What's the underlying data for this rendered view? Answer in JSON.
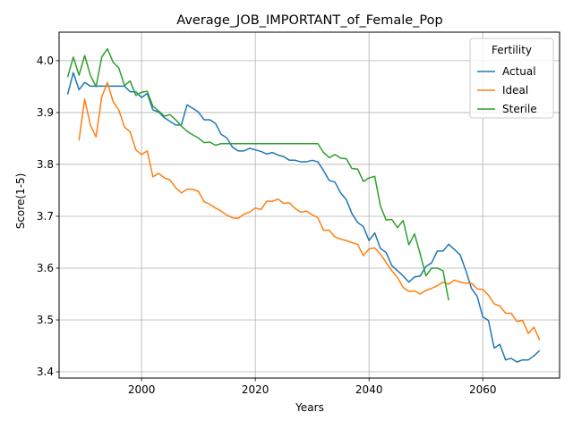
{
  "chart_data": {
    "type": "line",
    "title": "Average_JOB_IMPORTANT_of_Female_Pop",
    "xlabel": "Years",
    "ylabel": "Score(1-5)",
    "xlim": [
      1985.5,
      2073.5
    ],
    "ylim": [
      3.388,
      4.055
    ],
    "xticks": [
      2000,
      2020,
      2040,
      2060
    ],
    "yticks": [
      3.4,
      3.5,
      3.6,
      3.7,
      3.8,
      3.9,
      4.0
    ],
    "grid": true,
    "legend": {
      "title": "Fertility",
      "placement": "top-right"
    },
    "series": [
      {
        "name": "Actual",
        "color": "#1f77b4",
        "points": [
          [
            1987,
            3.935
          ],
          [
            1988,
            3.977
          ],
          [
            1989,
            3.944
          ],
          [
            1990,
            3.958
          ],
          [
            1991,
            3.951
          ],
          [
            1992,
            3.951
          ],
          [
            1993,
            3.951
          ],
          [
            1994,
            3.951
          ],
          [
            1995,
            3.951
          ],
          [
            1996,
            3.951
          ],
          [
            1997,
            3.951
          ],
          [
            1998,
            3.94
          ],
          [
            1999,
            3.94
          ],
          [
            2000,
            3.929
          ],
          [
            2001,
            3.937
          ],
          [
            2002,
            3.905
          ],
          [
            2003,
            3.901
          ],
          [
            2004,
            3.89
          ],
          [
            2005,
            3.883
          ],
          [
            2006,
            3.876
          ],
          [
            2007,
            3.876
          ],
          [
            2008,
            3.915
          ],
          [
            2009,
            3.908
          ],
          [
            2010,
            3.901
          ],
          [
            2011,
            3.886
          ],
          [
            2012,
            3.886
          ],
          [
            2013,
            3.879
          ],
          [
            2014,
            3.858
          ],
          [
            2015,
            3.851
          ],
          [
            2016,
            3.833
          ],
          [
            2017,
            3.826
          ],
          [
            2018,
            3.826
          ],
          [
            2019,
            3.831
          ],
          [
            2020,
            3.828
          ],
          [
            2021,
            3.825
          ],
          [
            2022,
            3.82
          ],
          [
            2023,
            3.823
          ],
          [
            2024,
            3.818
          ],
          [
            2025,
            3.815
          ],
          [
            2026,
            3.808
          ],
          [
            2027,
            3.808
          ],
          [
            2028,
            3.805
          ],
          [
            2029,
            3.805
          ],
          [
            2030,
            3.808
          ],
          [
            2031,
            3.805
          ],
          [
            2032,
            3.788
          ],
          [
            2033,
            3.769
          ],
          [
            2034,
            3.766
          ],
          [
            2035,
            3.745
          ],
          [
            2036,
            3.732
          ],
          [
            2037,
            3.705
          ],
          [
            2038,
            3.688
          ],
          [
            2039,
            3.68
          ],
          [
            2040,
            3.653
          ],
          [
            2041,
            3.668
          ],
          [
            2042,
            3.638
          ],
          [
            2043,
            3.63
          ],
          [
            2044,
            3.605
          ],
          [
            2045,
            3.595
          ],
          [
            2046,
            3.585
          ],
          [
            2047,
            3.573
          ],
          [
            2048,
            3.583
          ],
          [
            2049,
            3.585
          ],
          [
            2050,
            3.603
          ],
          [
            2051,
            3.61
          ],
          [
            2052,
            3.633
          ],
          [
            2053,
            3.633
          ],
          [
            2054,
            3.646
          ],
          [
            2055,
            3.636
          ],
          [
            2056,
            3.626
          ],
          [
            2057,
            3.596
          ],
          [
            2058,
            3.561
          ],
          [
            2059,
            3.546
          ],
          [
            2060,
            3.506
          ],
          [
            2061,
            3.499
          ],
          [
            2062,
            3.446
          ],
          [
            2063,
            3.453
          ],
          [
            2064,
            3.423
          ],
          [
            2065,
            3.426
          ],
          [
            2066,
            3.419
          ],
          [
            2067,
            3.423
          ],
          [
            2068,
            3.423
          ],
          [
            2069,
            3.431
          ],
          [
            2070,
            3.441
          ]
        ]
      },
      {
        "name": "Ideal",
        "color": "#ff7f0e",
        "points": [
          [
            1989,
            3.846
          ],
          [
            1990,
            3.926
          ],
          [
            1991,
            3.876
          ],
          [
            1992,
            3.853
          ],
          [
            1993,
            3.93
          ],
          [
            1994,
            3.958
          ],
          [
            1995,
            3.921
          ],
          [
            1996,
            3.905
          ],
          [
            1997,
            3.872
          ],
          [
            1998,
            3.863
          ],
          [
            1999,
            3.828
          ],
          [
            2000,
            3.819
          ],
          [
            2001,
            3.826
          ],
          [
            2002,
            3.776
          ],
          [
            2003,
            3.783
          ],
          [
            2004,
            3.774
          ],
          [
            2005,
            3.77
          ],
          [
            2006,
            3.755
          ],
          [
            2007,
            3.745
          ],
          [
            2008,
            3.752
          ],
          [
            2009,
            3.752
          ],
          [
            2010,
            3.748
          ],
          [
            2011,
            3.728
          ],
          [
            2012,
            3.723
          ],
          [
            2013,
            3.716
          ],
          [
            2014,
            3.71
          ],
          [
            2015,
            3.702
          ],
          [
            2016,
            3.697
          ],
          [
            2017,
            3.696
          ],
          [
            2018,
            3.704
          ],
          [
            2019,
            3.708
          ],
          [
            2020,
            3.716
          ],
          [
            2021,
            3.713
          ],
          [
            2022,
            3.729
          ],
          [
            2023,
            3.729
          ],
          [
            2024,
            3.733
          ],
          [
            2025,
            3.725
          ],
          [
            2026,
            3.726
          ],
          [
            2027,
            3.715
          ],
          [
            2028,
            3.708
          ],
          [
            2029,
            3.71
          ],
          [
            2030,
            3.703
          ],
          [
            2031,
            3.697
          ],
          [
            2032,
            3.673
          ],
          [
            2033,
            3.673
          ],
          [
            2034,
            3.66
          ],
          [
            2035,
            3.656
          ],
          [
            2036,
            3.653
          ],
          [
            2037,
            3.649
          ],
          [
            2038,
            3.646
          ],
          [
            2039,
            3.624
          ],
          [
            2040,
            3.637
          ],
          [
            2041,
            3.639
          ],
          [
            2042,
            3.627
          ],
          [
            2043,
            3.611
          ],
          [
            2044,
            3.595
          ],
          [
            2045,
            3.582
          ],
          [
            2046,
            3.563
          ],
          [
            2047,
            3.555
          ],
          [
            2048,
            3.556
          ],
          [
            2049,
            3.55
          ],
          [
            2050,
            3.557
          ],
          [
            2051,
            3.561
          ],
          [
            2052,
            3.566
          ],
          [
            2053,
            3.573
          ],
          [
            2054,
            3.569
          ],
          [
            2055,
            3.577
          ],
          [
            2056,
            3.573
          ],
          [
            2057,
            3.571
          ],
          [
            2058,
            3.571
          ],
          [
            2059,
            3.56
          ],
          [
            2060,
            3.559
          ],
          [
            2061,
            3.548
          ],
          [
            2062,
            3.531
          ],
          [
            2063,
            3.527
          ],
          [
            2064,
            3.513
          ],
          [
            2065,
            3.513
          ],
          [
            2066,
            3.497
          ],
          [
            2067,
            3.499
          ],
          [
            2068,
            3.474
          ],
          [
            2069,
            3.486
          ],
          [
            2070,
            3.461
          ]
        ]
      },
      {
        "name": "Sterile",
        "color": "#2ca02c",
        "points": [
          [
            1987,
            3.968
          ],
          [
            1988,
            4.007
          ],
          [
            1989,
            3.972
          ],
          [
            1990,
            4.01
          ],
          [
            1991,
            3.972
          ],
          [
            1992,
            3.95
          ],
          [
            1993,
            4.007
          ],
          [
            1994,
            4.023
          ],
          [
            1995,
            3.997
          ],
          [
            1996,
            3.986
          ],
          [
            1997,
            3.952
          ],
          [
            1998,
            3.961
          ],
          [
            1999,
            3.933
          ],
          [
            2000,
            3.939
          ],
          [
            2001,
            3.941
          ],
          [
            2002,
            3.912
          ],
          [
            2003,
            3.903
          ],
          [
            2004,
            3.893
          ],
          [
            2005,
            3.896
          ],
          [
            2006,
            3.886
          ],
          [
            2007,
            3.874
          ],
          [
            2008,
            3.864
          ],
          [
            2009,
            3.857
          ],
          [
            2010,
            3.851
          ],
          [
            2011,
            3.842
          ],
          [
            2012,
            3.843
          ],
          [
            2013,
            3.837
          ],
          [
            2014,
            3.84
          ],
          [
            2015,
            3.84
          ],
          [
            2016,
            3.84
          ],
          [
            2017,
            3.84
          ],
          [
            2018,
            3.84
          ],
          [
            2019,
            3.84
          ],
          [
            2020,
            3.84
          ],
          [
            2021,
            3.84
          ],
          [
            2022,
            3.84
          ],
          [
            2023,
            3.84
          ],
          [
            2024,
            3.84
          ],
          [
            2025,
            3.84
          ],
          [
            2026,
            3.84
          ],
          [
            2027,
            3.84
          ],
          [
            2028,
            3.84
          ],
          [
            2029,
            3.84
          ],
          [
            2030,
            3.84
          ],
          [
            2031,
            3.84
          ],
          [
            2032,
            3.823
          ],
          [
            2033,
            3.813
          ],
          [
            2034,
            3.819
          ],
          [
            2035,
            3.812
          ],
          [
            2036,
            3.811
          ],
          [
            2037,
            3.792
          ],
          [
            2038,
            3.791
          ],
          [
            2039,
            3.767
          ],
          [
            2040,
            3.774
          ],
          [
            2041,
            3.777
          ],
          [
            2042,
            3.72
          ],
          [
            2043,
            3.693
          ],
          [
            2044,
            3.694
          ],
          [
            2045,
            3.678
          ],
          [
            2046,
            3.692
          ],
          [
            2047,
            3.645
          ],
          [
            2048,
            3.666
          ],
          [
            2049,
            3.627
          ],
          [
            2050,
            3.585
          ],
          [
            2051,
            3.6
          ],
          [
            2052,
            3.6
          ],
          [
            2053,
            3.595
          ],
          [
            2054,
            3.538
          ]
        ]
      }
    ]
  }
}
